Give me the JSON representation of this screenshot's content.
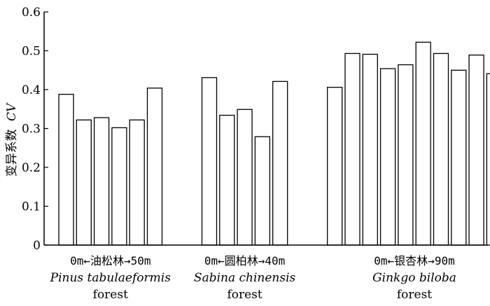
{
  "chart_data": {
    "type": "bar",
    "ylabel": "变异系数",
    "ylabel_var": "CV",
    "ylim": [
      0,
      0.6
    ],
    "yticks": [
      "0",
      "0.1",
      "0.2",
      "0.3",
      "0.4",
      "0.5",
      "0.6"
    ],
    "ytick_values": [
      0,
      0.1,
      0.2,
      0.3,
      0.4,
      0.5,
      0.6
    ],
    "grid": false,
    "bar_fill": "#ffffff",
    "bar_stroke": "#000000",
    "groups": [
      {
        "label": "0m←油松林→50m",
        "latin": "Pinus tabulaeformis",
        "suffix": "forest",
        "values": [
          0.388,
          0.322,
          0.328,
          0.302,
          0.322,
          0.404
        ]
      },
      {
        "label": "0m←圆柏林→40m",
        "latin": "Sabina chinensis",
        "suffix": "forest",
        "values": [
          0.431,
          0.334,
          0.349,
          0.279,
          0.421
        ]
      },
      {
        "label": "0m←银杏林→90m",
        "latin": "Ginkgo biloba",
        "suffix": "forest",
        "values": [
          0.406,
          0.493,
          0.491,
          0.454,
          0.464,
          0.522,
          0.493,
          0.45,
          0.489,
          0.441
        ]
      }
    ]
  }
}
